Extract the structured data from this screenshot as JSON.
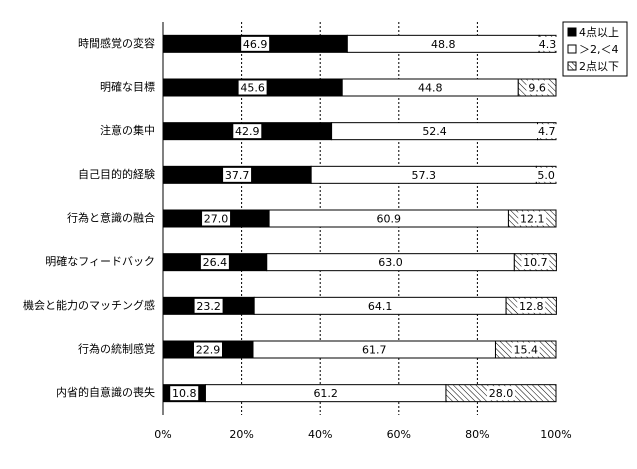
{
  "chart_data": {
    "type": "bar",
    "orientation": "horizontal",
    "stacked": true,
    "categories": [
      "時間感覚の変容",
      "明確な目標",
      "注意の集中",
      "自己目的的経験",
      "行為と意識の融合",
      "明確なフィードバック",
      "機会と能力のマッチング感",
      "行為の統制感覚",
      "内省的自意識の喪失"
    ],
    "series": [
      {
        "name": "4点以上",
        "color": "#000000",
        "values": [
          46.9,
          45.6,
          42.9,
          37.7,
          27.0,
          26.4,
          23.2,
          22.9,
          10.8
        ],
        "value_labels": [
          "46.9",
          "45.6",
          "42.9",
          "37.7",
          "27.0",
          "26.4",
          "23.2",
          "22.9",
          "10.8"
        ]
      },
      {
        "name": "＞2,＜4",
        "color": "#ffffff",
        "values": [
          48.8,
          44.8,
          52.4,
          57.3,
          60.9,
          63.0,
          64.1,
          61.7,
          61.2
        ],
        "value_labels": [
          "48.8",
          "44.8",
          "52.4",
          "57.3",
          "60.9",
          "63.0",
          "64.1",
          "61.7",
          "61.2"
        ]
      },
      {
        "name": "2点以下",
        "color": "#ffffff",
        "hatch": true,
        "values": [
          4.3,
          9.6,
          4.7,
          5.0,
          12.1,
          10.7,
          12.8,
          15.4,
          28.0
        ],
        "value_labels": [
          "4.3",
          "9.6",
          "4.7",
          "5.0",
          "12.1",
          "10.7",
          "12.8",
          "15.4",
          "28.0"
        ]
      }
    ],
    "xlim": [
      0,
      100
    ],
    "xticks": [
      {
        "value": 0,
        "label": "0%"
      },
      {
        "value": 20,
        "label": "20%"
      },
      {
        "value": 40,
        "label": "40%"
      },
      {
        "value": 60,
        "label": "60%"
      },
      {
        "value": 80,
        "label": "80%"
      },
      {
        "value": 100,
        "label": "100%"
      }
    ],
    "grid": true,
    "legend": "top-right"
  }
}
